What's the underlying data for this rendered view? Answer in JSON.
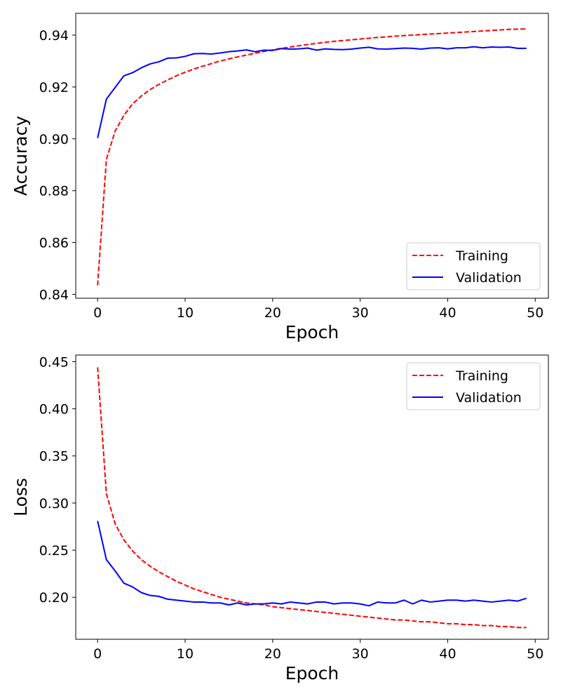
{
  "chart_data": [
    {
      "type": "line",
      "id": "accuracy",
      "title": "",
      "xlabel": "Epoch",
      "ylabel": "Accuracy",
      "xlim": [
        -2.5,
        51.5
      ],
      "ylim": [
        0.8385,
        0.9484
      ],
      "xticks": [
        0,
        10,
        20,
        30,
        40,
        50
      ],
      "xtick_labels": [
        "0",
        "10",
        "20",
        "30",
        "40",
        "50"
      ],
      "yticks": [
        0.84,
        0.86,
        0.88,
        0.9,
        0.92,
        0.94
      ],
      "ytick_labels": [
        "0.84",
        "0.86",
        "0.88",
        "0.90",
        "0.92",
        "0.94"
      ],
      "grid": false,
      "legend_position": "lower-right",
      "series": [
        {
          "name": "Training",
          "color": "#ff0000",
          "dash": "dashed",
          "x": [
            0,
            1,
            2,
            3,
            4,
            5,
            6,
            7,
            8,
            9,
            10,
            11,
            12,
            13,
            14,
            15,
            16,
            17,
            18,
            19,
            20,
            21,
            22,
            23,
            24,
            25,
            26,
            27,
            28,
            29,
            30,
            31,
            32,
            33,
            34,
            35,
            36,
            37,
            38,
            39,
            40,
            41,
            42,
            43,
            44,
            45,
            46,
            47,
            48,
            49
          ],
          "values": [
            0.8435,
            0.892,
            0.903,
            0.909,
            0.9135,
            0.9165,
            0.919,
            0.921,
            0.9227,
            0.9243,
            0.9257,
            0.9269,
            0.928,
            0.929,
            0.93,
            0.9308,
            0.9316,
            0.9323,
            0.933,
            0.9337,
            0.9343,
            0.9349,
            0.9354,
            0.9359,
            0.9364,
            0.9368,
            0.9372,
            0.9376,
            0.9379,
            0.9382,
            0.9385,
            0.9388,
            0.9391,
            0.9393,
            0.9396,
            0.9398,
            0.94,
            0.9402,
            0.9404,
            0.9406,
            0.9408,
            0.941,
            0.9412,
            0.9414,
            0.9416,
            0.9418,
            0.942,
            0.9422,
            0.9423,
            0.9424
          ]
        },
        {
          "name": "Validation",
          "color": "#0000ff",
          "dash": "solid",
          "x": [
            0,
            1,
            2,
            3,
            4,
            5,
            6,
            7,
            8,
            9,
            10,
            11,
            12,
            13,
            14,
            15,
            16,
            17,
            18,
            19,
            20,
            21,
            22,
            23,
            24,
            25,
            26,
            27,
            28,
            29,
            30,
            31,
            32,
            33,
            34,
            35,
            36,
            37,
            38,
            39,
            40,
            41,
            42,
            43,
            44,
            45,
            46,
            47,
            48,
            49
          ],
          "values": [
            0.9003,
            0.9153,
            0.9198,
            0.9243,
            0.9255,
            0.9274,
            0.9289,
            0.9297,
            0.9311,
            0.9312,
            0.9318,
            0.9328,
            0.9329,
            0.9327,
            0.9331,
            0.9336,
            0.9339,
            0.9343,
            0.9336,
            0.9342,
            0.9341,
            0.9348,
            0.9346,
            0.9347,
            0.935,
            0.9342,
            0.9347,
            0.9345,
            0.9344,
            0.9346,
            0.935,
            0.9353,
            0.9347,
            0.9346,
            0.9348,
            0.935,
            0.9349,
            0.9346,
            0.935,
            0.9351,
            0.9347,
            0.9351,
            0.9351,
            0.9355,
            0.9351,
            0.9354,
            0.9353,
            0.9354,
            0.9349,
            0.9349
          ]
        }
      ]
    },
    {
      "type": "line",
      "id": "loss",
      "title": "",
      "xlabel": "Epoch",
      "ylabel": "Loss",
      "xlim": [
        -2.5,
        51.5
      ],
      "ylim": [
        0.1555,
        0.457
      ],
      "xticks": [
        0,
        10,
        20,
        30,
        40,
        50
      ],
      "xtick_labels": [
        "0",
        "10",
        "20",
        "30",
        "40",
        "50"
      ],
      "yticks": [
        0.2,
        0.25,
        0.3,
        0.35,
        0.4,
        0.45
      ],
      "ytick_labels": [
        "0.20",
        "0.25",
        "0.30",
        "0.35",
        "0.40",
        "0.45"
      ],
      "grid": false,
      "legend_position": "upper-right",
      "series": [
        {
          "name": "Training",
          "color": "#ff0000",
          "dash": "dashed",
          "x": [
            0,
            1,
            2,
            3,
            4,
            5,
            6,
            7,
            8,
            9,
            10,
            11,
            12,
            13,
            14,
            15,
            16,
            17,
            18,
            19,
            20,
            21,
            22,
            23,
            24,
            25,
            26,
            27,
            28,
            29,
            30,
            31,
            32,
            33,
            34,
            35,
            36,
            37,
            38,
            39,
            40,
            41,
            42,
            43,
            44,
            45,
            46,
            47,
            48,
            49
          ],
          "values": [
            0.444,
            0.31,
            0.278,
            0.261,
            0.249,
            0.24,
            0.233,
            0.227,
            0.222,
            0.217,
            0.213,
            0.209,
            0.206,
            0.203,
            0.2,
            0.198,
            0.196,
            0.194,
            0.193,
            0.192,
            0.19,
            0.189,
            0.188,
            0.187,
            0.186,
            0.185,
            0.184,
            0.183,
            0.182,
            0.181,
            0.18,
            0.179,
            0.178,
            0.177,
            0.176,
            0.176,
            0.175,
            0.174,
            0.174,
            0.173,
            0.172,
            0.172,
            0.171,
            0.171,
            0.17,
            0.17,
            0.169,
            0.169,
            0.168,
            0.168
          ]
        },
        {
          "name": "Validation",
          "color": "#0000ff",
          "dash": "solid",
          "x": [
            0,
            1,
            2,
            3,
            4,
            5,
            6,
            7,
            8,
            9,
            10,
            11,
            12,
            13,
            14,
            15,
            16,
            17,
            18,
            19,
            20,
            21,
            22,
            23,
            24,
            25,
            26,
            27,
            28,
            29,
            30,
            31,
            32,
            33,
            34,
            35,
            36,
            37,
            38,
            39,
            40,
            41,
            42,
            43,
            44,
            45,
            46,
            47,
            48,
            49
          ],
          "values": [
            0.281,
            0.24,
            0.228,
            0.215,
            0.211,
            0.205,
            0.202,
            0.201,
            0.198,
            0.197,
            0.196,
            0.195,
            0.195,
            0.194,
            0.194,
            0.192,
            0.194,
            0.192,
            0.193,
            0.193,
            0.194,
            0.193,
            0.195,
            0.194,
            0.193,
            0.195,
            0.195,
            0.193,
            0.194,
            0.194,
            0.193,
            0.191,
            0.195,
            0.194,
            0.194,
            0.197,
            0.193,
            0.197,
            0.195,
            0.196,
            0.197,
            0.197,
            0.196,
            0.197,
            0.196,
            0.195,
            0.196,
            0.197,
            0.196,
            0.199
          ]
        }
      ]
    }
  ]
}
